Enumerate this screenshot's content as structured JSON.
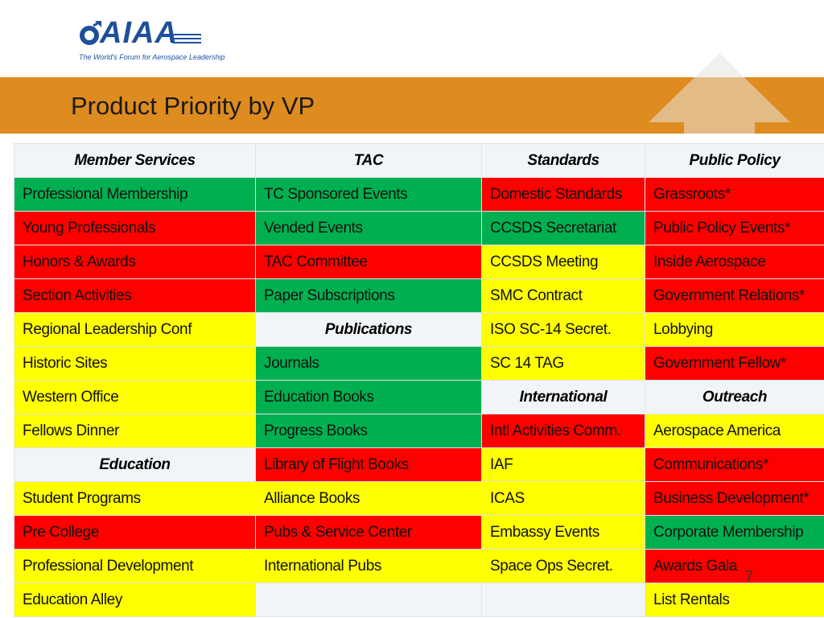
{
  "header": {
    "logo_text": "AIAA",
    "logo_tagline": "The World's Forum for Aerospace Leadership",
    "title": "Product Priority by VP"
  },
  "colors": {
    "band": "#de8b1f",
    "green": "#00b050",
    "red": "#ff0000",
    "yellow": "#ffff00",
    "header_cell": "#f2f5f7"
  },
  "table": {
    "rows": [
      [
        {
          "text": "Member Services",
          "status": "header"
        },
        {
          "text": "TAC",
          "status": "header"
        },
        {
          "text": "Standards",
          "status": "header"
        },
        {
          "text": "Public Policy",
          "status": "header"
        }
      ],
      [
        {
          "text": "Professional Membership",
          "status": "green"
        },
        {
          "text": "TC Sponsored Events",
          "status": "green"
        },
        {
          "text": "Domestic Standards",
          "status": "red"
        },
        {
          "text": "Grassroots*",
          "status": "red"
        }
      ],
      [
        {
          "text": "Young Professionals",
          "status": "red"
        },
        {
          "text": "Vended Events",
          "status": "green"
        },
        {
          "text": "CCSDS Secretariat",
          "status": "green"
        },
        {
          "text": "Public Policy Events*",
          "status": "red"
        }
      ],
      [
        {
          "text": "Honors & Awards",
          "status": "red"
        },
        {
          "text": "TAC Committee",
          "status": "red"
        },
        {
          "text": "CCSDS Meeting",
          "status": "yellow"
        },
        {
          "text": "Inside Aerospace",
          "status": "red"
        }
      ],
      [
        {
          "text": "Section Activities",
          "status": "red"
        },
        {
          "text": "Paper Subscriptions",
          "status": "green"
        },
        {
          "text": "SMC Contract",
          "status": "yellow"
        },
        {
          "text": "Government Relations*",
          "status": "red"
        }
      ],
      [
        {
          "text": "Regional Leadership Conf",
          "status": "yellow"
        },
        {
          "text": "Publications",
          "status": "header"
        },
        {
          "text": "ISO SC-14 Secret.",
          "status": "yellow"
        },
        {
          "text": "Lobbying",
          "status": "yellow"
        }
      ],
      [
        {
          "text": "Historic Sites",
          "status": "yellow"
        },
        {
          "text": "Journals",
          "status": "green"
        },
        {
          "text": "SC 14 TAG",
          "status": "yellow"
        },
        {
          "text": "Government Fellow*",
          "status": "red"
        }
      ],
      [
        {
          "text": "Western Office",
          "status": "yellow"
        },
        {
          "text": "Education Books",
          "status": "green"
        },
        {
          "text": "International",
          "status": "header"
        },
        {
          "text": "Outreach",
          "status": "header"
        }
      ],
      [
        {
          "text": "Fellows Dinner",
          "status": "yellow"
        },
        {
          "text": "Progress Books",
          "status": "green"
        },
        {
          "text": "Intl Activities Comm.",
          "status": "red"
        },
        {
          "text": "Aerospace America",
          "status": "yellow"
        }
      ],
      [
        {
          "text": "Education",
          "status": "header"
        },
        {
          "text": "Library of Flight Books",
          "status": "red"
        },
        {
          "text": "IAF",
          "status": "yellow"
        },
        {
          "text": "Communications*",
          "status": "red"
        }
      ],
      [
        {
          "text": "Student Programs",
          "status": "yellow"
        },
        {
          "text": "Alliance Books",
          "status": "yellow"
        },
        {
          "text": "ICAS",
          "status": "yellow"
        },
        {
          "text": "Business Development*",
          "status": "red"
        }
      ],
      [
        {
          "text": "Pre College",
          "status": "red"
        },
        {
          "text": "Pubs & Service Center",
          "status": "red"
        },
        {
          "text": "Embassy Events",
          "status": "yellow"
        },
        {
          "text": "Corporate Membership",
          "status": "green"
        }
      ],
      [
        {
          "text": "Professional Development",
          "status": "yellow"
        },
        {
          "text": "International Pubs",
          "status": "yellow"
        },
        {
          "text": "Space Ops Secret.",
          "status": "yellow"
        },
        {
          "text": "Awards Gala",
          "status": "red"
        }
      ],
      [
        {
          "text": "Education Alley",
          "status": "yellow"
        },
        {
          "text": "",
          "status": "empty"
        },
        {
          "text": "",
          "status": "empty"
        },
        {
          "text": "List Rentals",
          "status": "yellow"
        }
      ]
    ]
  },
  "footer": {
    "page_number": "7"
  }
}
